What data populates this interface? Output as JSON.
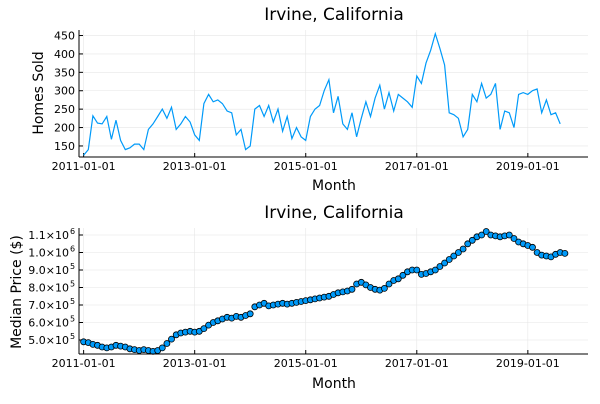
{
  "chart_data": [
    {
      "type": "line",
      "title": "Irvine, California",
      "xlabel": "Month",
      "ylabel": "Homes Sold",
      "color": "#009af9",
      "xlim": [
        "2010-12",
        "2020-02"
      ],
      "ylim": [
        120,
        465
      ],
      "xticks": [
        "2011-01-01",
        "2013-01-01",
        "2015-01-01",
        "2017-01-01",
        "2019-01-01"
      ],
      "yticks": [
        150,
        200,
        250,
        300,
        350,
        400,
        450
      ],
      "grid": true,
      "x_start": "2011-01",
      "x_step": "1 month",
      "values": [
        125,
        140,
        232,
        212,
        210,
        230,
        168,
        220,
        165,
        140,
        145,
        155,
        155,
        140,
        195,
        210,
        230,
        250,
        225,
        255,
        195,
        210,
        230,
        215,
        180,
        165,
        265,
        290,
        270,
        275,
        265,
        245,
        240,
        180,
        195,
        140,
        150,
        250,
        260,
        230,
        260,
        215,
        250,
        190,
        230,
        170,
        200,
        175,
        165,
        230,
        250,
        260,
        300,
        330,
        240,
        285,
        210,
        195,
        240,
        175,
        225,
        270,
        230,
        280,
        315,
        250,
        295,
        245,
        290,
        280,
        270,
        255,
        340,
        320,
        375,
        410,
        455,
        415,
        370,
        240,
        235,
        225,
        175,
        195,
        290,
        270,
        320,
        280,
        290,
        320,
        195,
        245,
        240,
        200,
        290,
        295,
        290,
        300,
        305,
        240,
        275,
        235,
        240,
        210
      ]
    },
    {
      "type": "scatter",
      "title": "Irvine, California",
      "xlabel": "Month",
      "ylabel": "Median Price ($)",
      "color": "#009af9",
      "xlim": [
        "2010-12",
        "2020-02"
      ],
      "ylim": [
        420000,
        1140000
      ],
      "xticks": [
        "2011-01-01",
        "2013-01-01",
        "2015-01-01",
        "2017-01-01",
        "2019-01-01"
      ],
      "ytick_labels": [
        {
          "value": 500000,
          "mantissa": "5.0×10",
          "exp": "5"
        },
        {
          "value": 600000,
          "mantissa": "6.0×10",
          "exp": "5"
        },
        {
          "value": 700000,
          "mantissa": "7.0×10",
          "exp": "5"
        },
        {
          "value": 800000,
          "mantissa": "8.0×10",
          "exp": "5"
        },
        {
          "value": 900000,
          "mantissa": "9.0×10",
          "exp": "5"
        },
        {
          "value": 1000000,
          "mantissa": "1.0×10",
          "exp": "6"
        },
        {
          "value": 1100000,
          "mantissa": "1.1×10",
          "exp": "6"
        }
      ],
      "grid": true,
      "x_start": "2011-01",
      "x_step": "1 month",
      "values": [
        490000,
        485000,
        475000,
        470000,
        460000,
        455000,
        460000,
        470000,
        465000,
        460000,
        450000,
        445000,
        440000,
        445000,
        440000,
        435000,
        440000,
        455000,
        480000,
        505000,
        530000,
        540000,
        545000,
        550000,
        545000,
        550000,
        565000,
        585000,
        600000,
        610000,
        620000,
        630000,
        625000,
        635000,
        630000,
        640000,
        650000,
        690000,
        700000,
        710000,
        695000,
        700000,
        705000,
        710000,
        705000,
        710000,
        715000,
        720000,
        725000,
        730000,
        735000,
        740000,
        745000,
        750000,
        760000,
        770000,
        775000,
        780000,
        790000,
        820000,
        830000,
        815000,
        800000,
        790000,
        785000,
        795000,
        820000,
        840000,
        850000,
        870000,
        890000,
        900000,
        900000,
        875000,
        880000,
        890000,
        900000,
        920000,
        940000,
        960000,
        980000,
        1000000,
        1020000,
        1050000,
        1070000,
        1090000,
        1100000,
        1120000,
        1100000,
        1095000,
        1090000,
        1095000,
        1100000,
        1080000,
        1060000,
        1050000,
        1040000,
        1030000,
        1000000,
        985000,
        980000,
        975000,
        990000,
        1000000,
        995000
      ]
    }
  ]
}
